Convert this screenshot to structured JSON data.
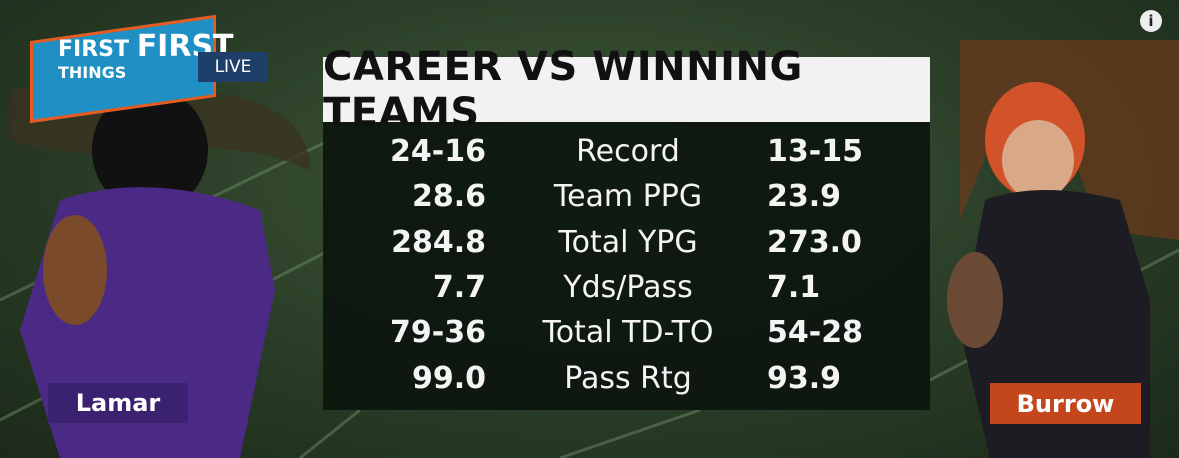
{
  "logo": {
    "line1": "FIRST",
    "line2": "THINGS",
    "line3": "FIRST",
    "badge": "LIVE"
  },
  "info_icon": "i",
  "title": "CAREER VS WINNING TEAMS",
  "rows": [
    {
      "left": "24-16",
      "stat": "Record",
      "right": "13-15"
    },
    {
      "left": "28.6",
      "stat": "Team PPG",
      "right": "23.9"
    },
    {
      "left": "284.8",
      "stat": "Total YPG",
      "right": "273.0"
    },
    {
      "left": "7.7",
      "stat": "Yds/Pass",
      "right": "7.1"
    },
    {
      "left": "79-36",
      "stat": "Total TD-TO",
      "right": "54-28"
    },
    {
      "left": "99.0",
      "stat": "Pass Rtg",
      "right": "93.9"
    }
  ],
  "players": {
    "left": "Lamar",
    "right": "Burrow"
  }
}
